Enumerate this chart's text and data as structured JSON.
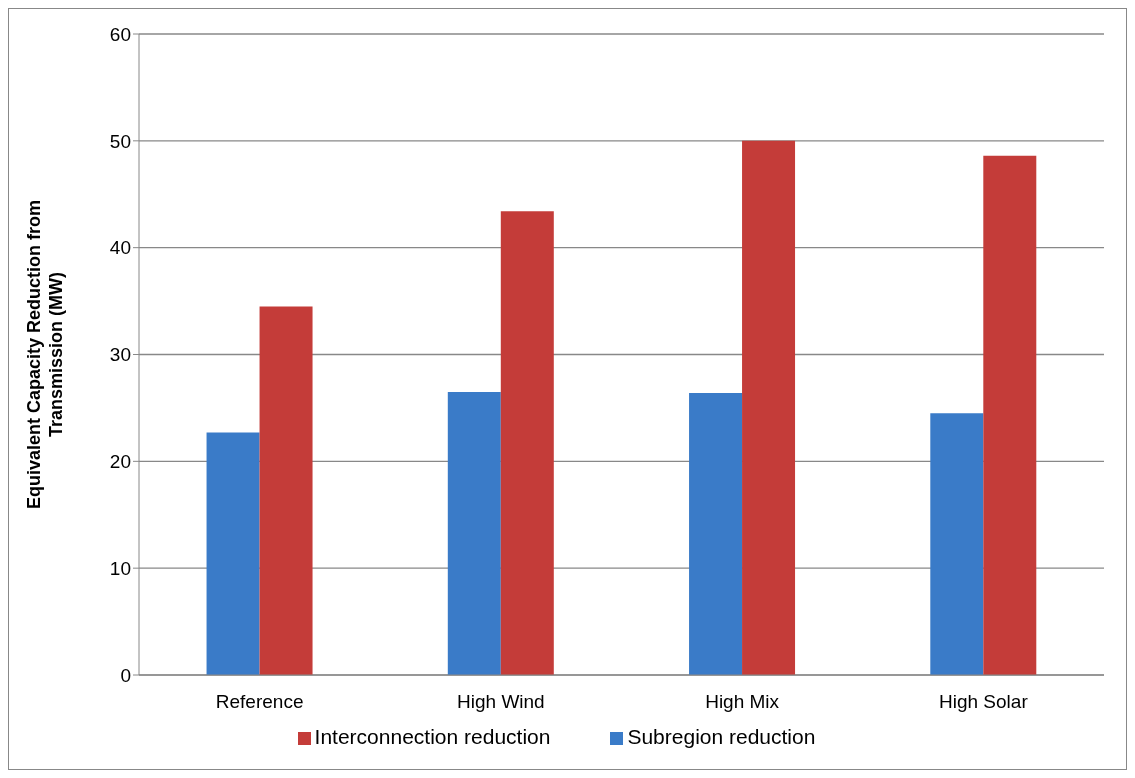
{
  "chart_data": {
    "type": "bar",
    "ylabel": "Equivalent Capacity Reduction from Transmission (MW)",
    "categories": [
      "Reference",
      "High Wind",
      "High Mix",
      "High Solar"
    ],
    "series": [
      {
        "name": "Subregion reduction",
        "color": "#3a7bc8",
        "values": [
          22.7,
          26.5,
          26.4,
          24.5
        ]
      },
      {
        "name": "Interconnection reduction",
        "color": "#c43c39",
        "values": [
          34.5,
          43.4,
          50,
          48.6
        ]
      }
    ],
    "ylim": [
      0,
      60
    ],
    "yticks": [
      0,
      10,
      20,
      30,
      40,
      50,
      60
    ],
    "grid": "y",
    "legend": "bottom"
  }
}
